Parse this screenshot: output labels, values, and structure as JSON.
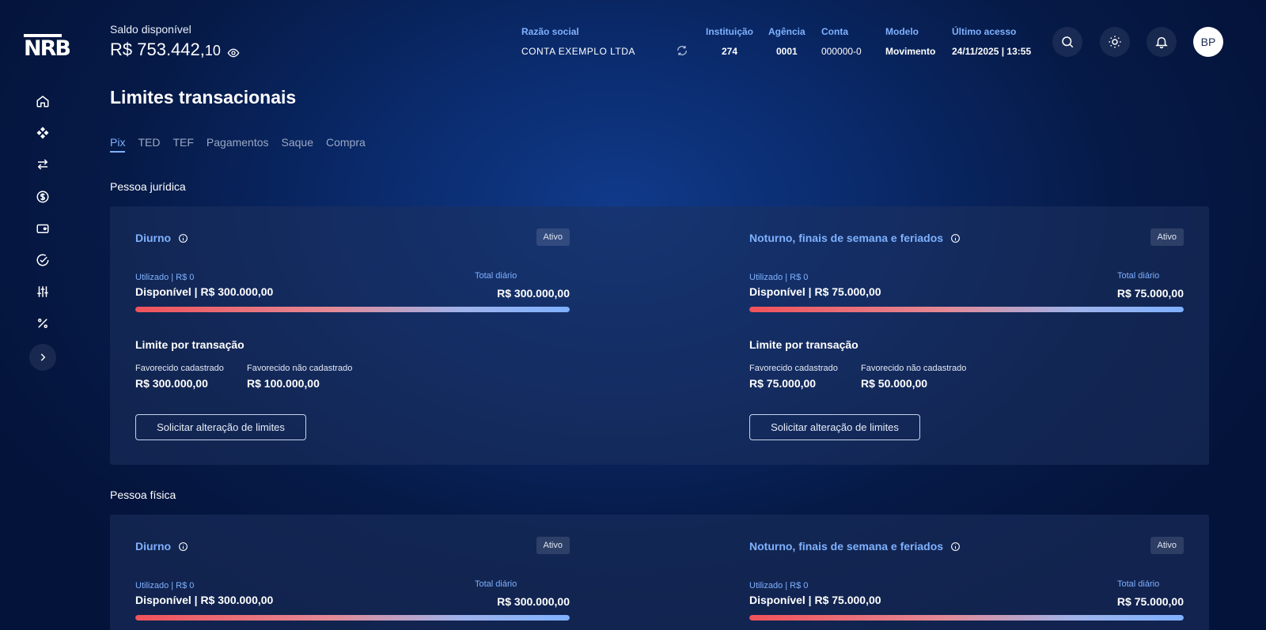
{
  "brand": {
    "logo": "NRB"
  },
  "sidebar": {
    "items": [
      {
        "name": "home-icon"
      },
      {
        "name": "diamond-icon"
      },
      {
        "name": "transfer-icon"
      },
      {
        "name": "dollar-icon"
      },
      {
        "name": "wallet-icon"
      },
      {
        "name": "check-circle-icon"
      },
      {
        "name": "sliders-icon"
      },
      {
        "name": "percent-icon"
      }
    ],
    "expand_icon": "chevron-right-icon"
  },
  "header": {
    "balance_label": "Saldo disponível",
    "balance_main": "R$ 753.442,",
    "balance_cents": "10",
    "razao_social_label": "Razão social",
    "razao_social_value": "CONTA EXEMPLO LTDA",
    "instituicao_label": "Instituição",
    "instituicao_value": "274",
    "agencia_label": "Agência",
    "agencia_value": "0001",
    "conta_label": "Conta",
    "conta_value": "000000-0",
    "modelo_label": "Modelo",
    "modelo_value": "Movimento",
    "ultimo_acesso_label": "Último acesso",
    "ultimo_acesso_value": "24/11/2025 | 13:55",
    "avatar_initials": "BP"
  },
  "page": {
    "title": "Limites transacionais",
    "tabs": [
      "Pix",
      "TED",
      "TEF",
      "Pagamentos",
      "Saque",
      "Compra"
    ],
    "active_tab": "Pix"
  },
  "sections": [
    {
      "title": "Pessoa jurídica",
      "cards": [
        {
          "title": "Diurno",
          "status": "Ativo",
          "used": "Utilizado | R$ 0",
          "available": "Disponível | R$ 300.000,00",
          "total_label": "Total diário",
          "total_value": "R$ 300.000,00",
          "available_fraction": 1.0,
          "per_tx_title": "Limite por transação",
          "fav_reg_label": "Favorecido cadastrado",
          "fav_reg_value": "R$ 300.000,00",
          "fav_unreg_label": "Favorecido não cadastrado",
          "fav_unreg_value": "R$ 100.000,00",
          "button": "Solicitar alteração de limites"
        },
        {
          "title": "Noturno, finais de semana e feriados",
          "status": "Ativo",
          "used": "Utilizado | R$ 0",
          "available": "Disponível | R$ 75.000,00",
          "total_label": "Total diário",
          "total_value": "R$ 75.000,00",
          "available_fraction": 1.0,
          "per_tx_title": "Limite por transação",
          "fav_reg_label": "Favorecido cadastrado",
          "fav_reg_value": "R$ 75.000,00",
          "fav_unreg_label": "Favorecido não cadastrado",
          "fav_unreg_value": "R$ 50.000,00",
          "button": "Solicitar alteração de limites"
        }
      ]
    },
    {
      "title": "Pessoa física",
      "cards": [
        {
          "title": "Diurno",
          "status": "Ativo",
          "used": "Utilizado | R$ 0",
          "available": "Disponível | R$ 300.000,00",
          "total_label": "Total diário",
          "total_value": "R$ 300.000,00",
          "available_fraction": 1.0
        },
        {
          "title": "Noturno, finais de semana e feriados",
          "status": "Ativo",
          "used": "Utilizado | R$ 0",
          "available": "Disponível | R$ 75.000,00",
          "total_label": "Total diário",
          "total_value": "R$ 75.000,00",
          "available_fraction": 1.0
        }
      ]
    }
  ],
  "colors": {
    "accent": "#7fb1ff",
    "bar_start": "#f0525a",
    "bar_end": "#7fb1ff",
    "background": "#061a47"
  }
}
